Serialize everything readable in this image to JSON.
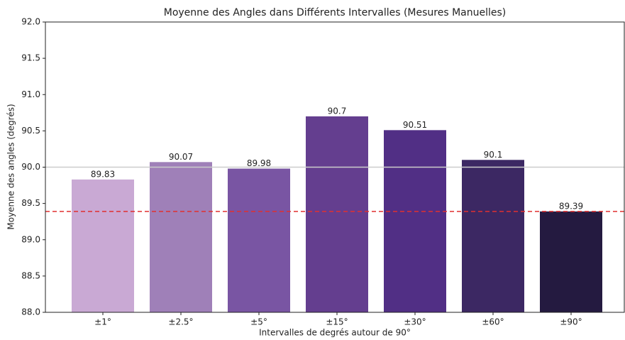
{
  "chart_data": {
    "type": "bar",
    "title": "Moyenne des Angles dans Différents Intervalles (Mesures Manuelles)",
    "x_label": "Intervalles de degrés autour de 90°",
    "y_label": "Moyenne des angles (degrés)",
    "categories": [
      "±1°",
      "±2.5°",
      "±5°",
      "±15°",
      "±30°",
      "±60°",
      "±90°"
    ],
    "values": [
      89.83,
      90.07,
      89.98,
      90.7,
      90.51,
      90.1,
      89.39
    ],
    "colors": [
      "#c9a9d4",
      "#9f80b8",
      "#7955a3",
      "#643e8f",
      "#512f85",
      "#3c2863",
      "#241a40"
    ],
    "ylim": [
      88,
      92
    ],
    "yticks": [
      {
        "value": 88,
        "label": "88.0"
      },
      {
        "value": 88.5,
        "label": "88.5"
      },
      {
        "value": 89,
        "label": "89.0"
      },
      {
        "value": 89.5,
        "label": "89.5"
      },
      {
        "value": 90,
        "label": "90.0"
      },
      {
        "value": 90.5,
        "label": "90.5"
      },
      {
        "value": 91,
        "label": "91.0"
      },
      {
        "value": 91.5,
        "label": "91.5"
      },
      {
        "value": 92,
        "label": "92.0"
      }
    ],
    "reference_lines": [
      {
        "value": 90,
        "color": "#cccccc",
        "style": "solid"
      },
      {
        "value": 89.39,
        "color": "#e03030",
        "style": "dashed"
      }
    ]
  }
}
